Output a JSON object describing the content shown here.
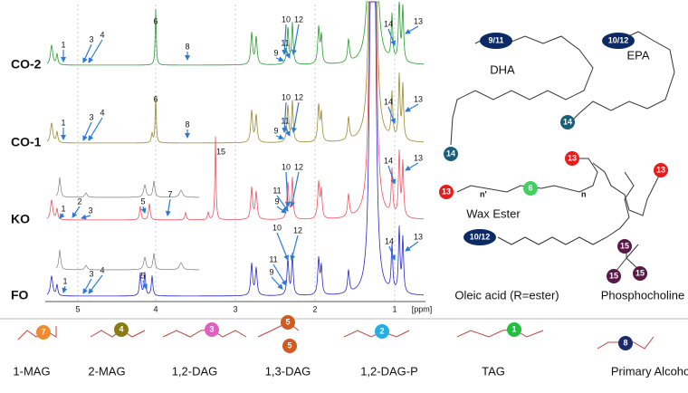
{
  "spectra": {
    "axis_ticks": [
      "5",
      "4",
      "3",
      "2",
      "1"
    ],
    "axis_unit": "[ppm]",
    "traces": [
      {
        "name": "CO-2",
        "color": "#23a02c",
        "peak_labels": [
          "1",
          "3",
          "4",
          "6",
          "8",
          "10",
          "12",
          "9",
          "11",
          "14",
          "13"
        ]
      },
      {
        "name": "CO-1",
        "color": "#9a8a2e",
        "peak_labels": [
          "1",
          "3",
          "4",
          "6",
          "8",
          "10",
          "12",
          "9",
          "11",
          "14",
          "13"
        ]
      },
      {
        "name": "KO",
        "color": "#f05060",
        "peak_labels": [
          "1",
          "2",
          "3",
          "5",
          "7",
          "10",
          "11",
          "9",
          "12",
          "14",
          "13",
          "15"
        ]
      },
      {
        "name": "FO",
        "color": "#2828d0",
        "peak_labels": [
          "1",
          "3",
          "4",
          "5",
          "10",
          "12",
          "11",
          "9",
          "14",
          "13"
        ]
      }
    ]
  },
  "structures": [
    {
      "name": "DHA",
      "badges": [
        {
          "text": "9/11",
          "color": "#0c2a66"
        },
        {
          "text": "14",
          "color": "#1a5f7a"
        }
      ]
    },
    {
      "name": "EPA",
      "badges": [
        {
          "text": "10/12",
          "color": "#0c2a66"
        },
        {
          "text": "14",
          "color": "#1a5f7a"
        }
      ]
    },
    {
      "name": "Wax Ester",
      "badges": [
        {
          "text": "13",
          "color": "#e81c1c"
        },
        {
          "text": "6",
          "color": "#44d060"
        },
        {
          "text": "13",
          "color": "#e81c1c"
        },
        {
          "text": "13",
          "color": "#e81c1c"
        }
      ],
      "subscripts": [
        "n'",
        "n"
      ]
    },
    {
      "name": "Oleic acid (R=ester)",
      "badges": [
        {
          "text": "10/12",
          "color": "#0c2a66"
        }
      ]
    },
    {
      "name": "Phosphocholine",
      "badges": [
        {
          "text": "15",
          "color": "#5a1848"
        },
        {
          "text": "15",
          "color": "#5a1848"
        },
        {
          "text": "15",
          "color": "#5a1848"
        }
      ]
    },
    {
      "name": "1-MAG",
      "badges": [
        {
          "text": "7",
          "color": "#f08a30"
        }
      ]
    },
    {
      "name": "2-MAG",
      "badges": [
        {
          "text": "4",
          "color": "#8a7a10"
        }
      ]
    },
    {
      "name": "1,2-DAG",
      "badges": [
        {
          "text": "3",
          "color": "#e060c0"
        }
      ]
    },
    {
      "name": "1,3-DAG",
      "badges": [
        {
          "text": "5",
          "color": "#d05a20"
        },
        {
          "text": "5",
          "color": "#d05a20"
        }
      ]
    },
    {
      "name": "1,2-DAG-P",
      "badges": [
        {
          "text": "2",
          "color": "#20b0e8"
        }
      ]
    },
    {
      "name": "TAG",
      "badges": [
        {
          "text": "1",
          "color": "#20c040"
        }
      ]
    },
    {
      "name": "Primary Alcohol",
      "badges": [
        {
          "text": "8",
          "color": "#1a2a6a"
        }
      ]
    }
  ]
}
